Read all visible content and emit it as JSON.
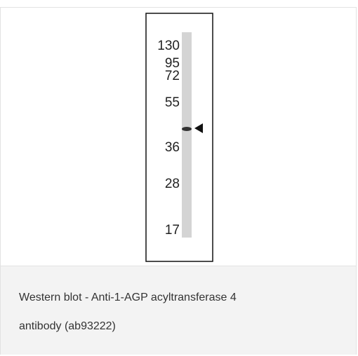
{
  "blot": {
    "markers": [
      "130",
      "95",
      "72",
      "55",
      "36",
      "28",
      "17"
    ]
  },
  "caption": {
    "line1": "Western blot - Anti-1-AGP acyltransferase 4",
    "line2": "antibody (ab93222)"
  }
}
